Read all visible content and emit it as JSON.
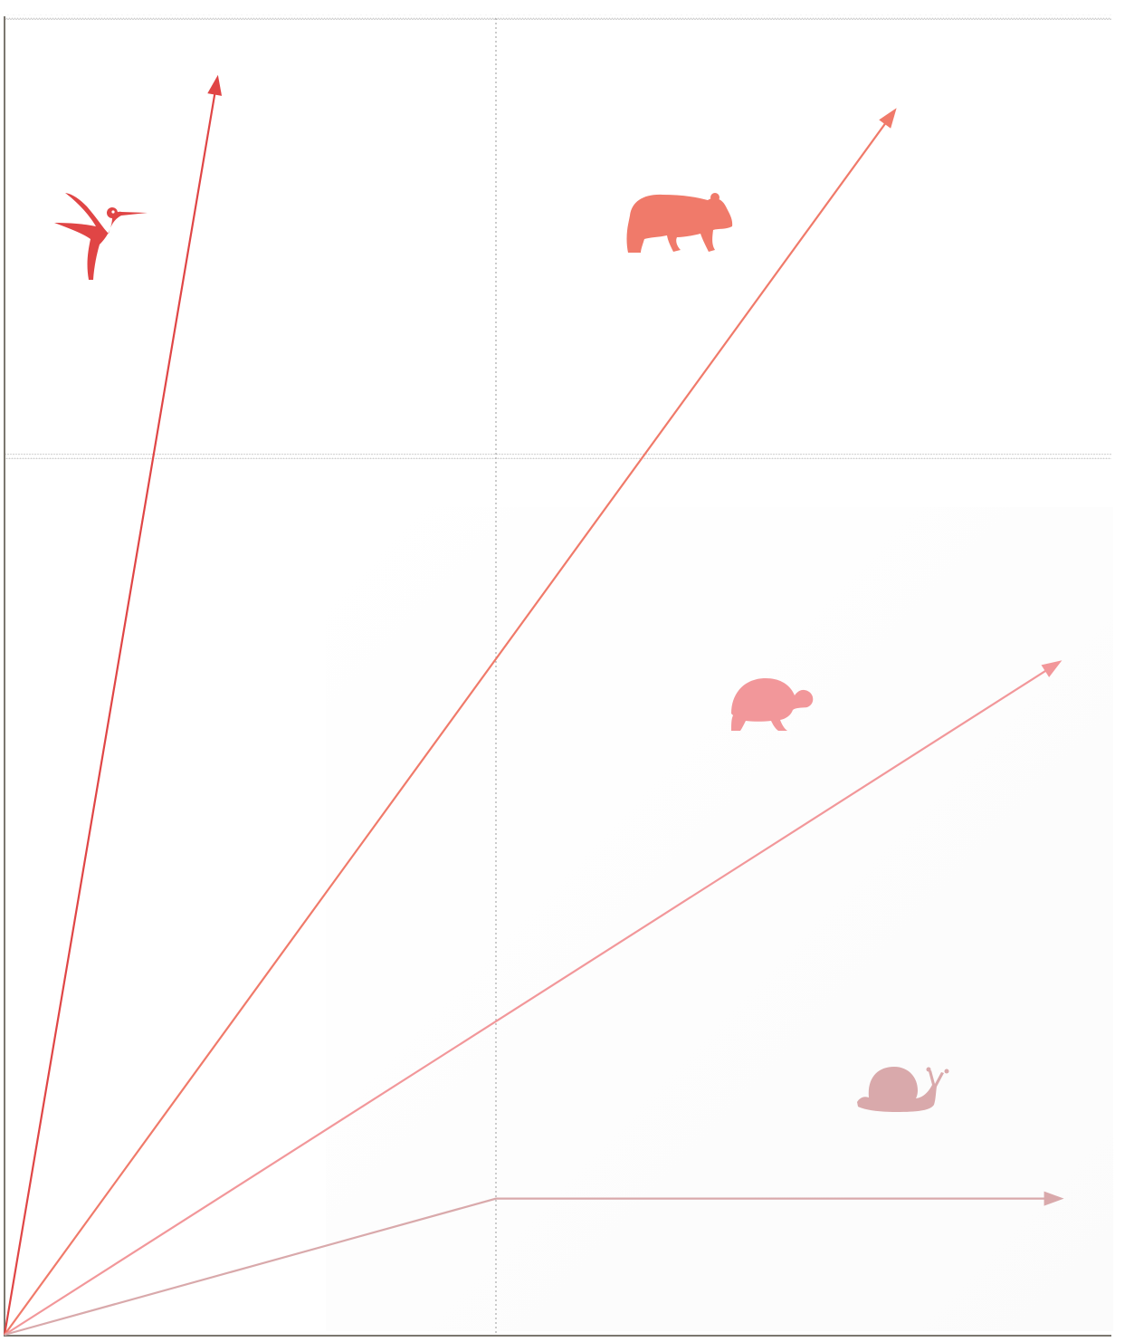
{
  "chart_data": {
    "type": "line",
    "title": "",
    "xlabel": "",
    "ylabel": "",
    "xlim": [
      0,
      2
    ],
    "ylim": [
      0,
      3
    ],
    "grid": {
      "vertical_dotted": [
        1
      ],
      "horizontal_zigzag": [
        2,
        3
      ]
    },
    "legend": "icons",
    "series": [
      {
        "icon": "hummingbird-icon",
        "color": "#e04545",
        "points": [
          [
            0,
            0
          ],
          [
            0.43,
            2.84
          ]
        ]
      },
      {
        "icon": "bear-icon",
        "color": "#f07a6a",
        "points": [
          [
            0,
            0
          ],
          [
            1.8,
            2.77
          ]
        ]
      },
      {
        "icon": "tortoise-icon",
        "color": "#f2979a",
        "points": [
          [
            0,
            0
          ],
          [
            2.13,
            1.52
          ]
        ]
      },
      {
        "icon": "snail-icon",
        "color": "#d9a9ab",
        "points": [
          [
            0,
            0
          ],
          [
            1,
            0.31
          ],
          [
            2.13,
            0.31
          ]
        ]
      }
    ]
  }
}
